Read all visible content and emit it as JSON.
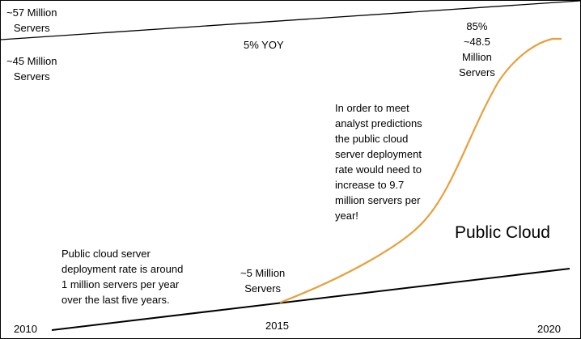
{
  "labels": {
    "top_left": {
      "line1": "~57 Million",
      "line2": "Servers"
    },
    "mid_left": {
      "line1": "~45 Million",
      "line2": "Servers"
    },
    "growth": "5% YOY",
    "peak": {
      "line1": "85%",
      "line2": "~48.5",
      "line3": "Million",
      "line4": "Servers"
    },
    "prediction": {
      "line1": "In order to meet",
      "line2": "analyst predictions",
      "line3": "the public cloud",
      "line4": "server deployment",
      "line5": "rate would need to",
      "line6": "increase to 9.7",
      "line7": "million servers per",
      "line8": "year!"
    },
    "public_cloud": "Public Cloud",
    "current_rate": {
      "line1": "Public cloud server",
      "line2": "deployment rate is around",
      "line3": "1 million servers per year",
      "line4": "over the last five years."
    },
    "five_million": {
      "line1": "~5 Million",
      "line2": "Servers"
    },
    "year_2010": "2010",
    "year_2015": "2015",
    "year_2020": "2020"
  },
  "colors": {
    "curve": "#e8a03c",
    "line": "#000000"
  }
}
